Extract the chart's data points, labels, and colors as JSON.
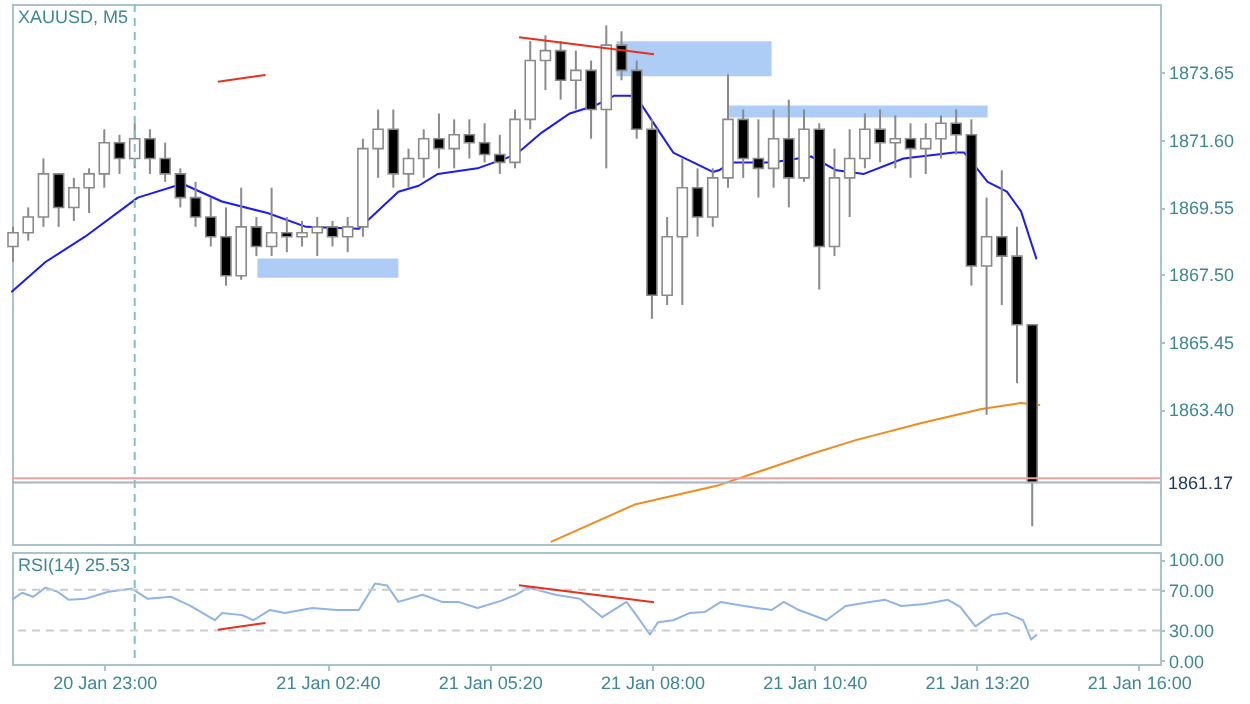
{
  "chart_data": [
    {
      "type": "candlestick",
      "title": "XAUUSD, M5",
      "x": [
        "--01-20T21:30",
        "--01-20T21:45",
        "--01-20T22:00",
        "--01-20T22:15",
        "--01-20T22:30",
        "--01-20T22:45",
        "--01-20T23:00",
        "--01-20T23:15",
        "--01-20T23:30",
        "--01-20T23:45",
        "--01-21T00:00",
        "--01-21T00:15",
        "--01-21T00:30",
        "--01-21T00:45",
        "--01-21T01:00",
        "--01-21T01:15",
        "--01-21T01:30",
        "--01-21T01:45",
        "--01-21T02:00",
        "--01-21T02:15",
        "--01-21T02:30",
        "--01-21T02:45",
        "--01-21T03:00",
        "--01-21T03:15",
        "--01-21T03:30",
        "--01-21T03:45",
        "--01-21T04:00",
        "--01-21T04:15",
        "--01-21T04:30",
        "--01-21T04:45",
        "--01-21T05:00",
        "--01-21T05:15",
        "--01-21T05:30",
        "--01-21T05:45",
        "--01-21T06:00",
        "--01-21T06:15",
        "--01-21T06:30",
        "--01-21T06:45",
        "--01-21T07:00",
        "--01-21T07:15",
        "--01-21T07:30",
        "--01-21T07:45",
        "--01-21T08:00",
        "--01-21T08:15",
        "--01-21T08:30",
        "--01-21T08:45",
        "--01-21T09:00",
        "--01-21T09:15",
        "--01-21T09:30",
        "--01-21T09:45",
        "--01-21T10:00",
        "--01-21T10:15",
        "--01-21T10:30",
        "--01-21T10:45",
        "--01-21T11:00",
        "--01-21T11:15",
        "--01-21T11:30",
        "--01-21T11:45",
        "--01-21T12:00",
        "--01-21T12:15",
        "--01-21T12:30",
        "--01-21T12:45",
        "--01-21T13:00",
        "--01-21T13:15",
        "--01-21T13:30",
        "--01-21T13:45",
        "--01-21T14:00",
        "--01-21T14:15"
      ],
      "ohlc": [
        [
          1868.35,
          1868.95,
          1867.88,
          1868.77
        ],
        [
          1868.77,
          1869.54,
          1868.53,
          1869.25
        ],
        [
          1869.25,
          1871.03,
          1868.95,
          1870.56
        ],
        [
          1870.56,
          1870.56,
          1868.95,
          1869.54
        ],
        [
          1869.54,
          1870.44,
          1869.13,
          1870.14
        ],
        [
          1870.14,
          1870.73,
          1869.37,
          1870.56
        ],
        [
          1870.56,
          1871.92,
          1870.14,
          1871.51
        ],
        [
          1871.51,
          1871.75,
          1870.56,
          1871.03
        ],
        [
          1871.03,
          1872.1,
          1870.73,
          1871.63
        ],
        [
          1871.63,
          1871.92,
          1870.56,
          1871.03
        ],
        [
          1871.03,
          1871.51,
          1870.32,
          1870.56
        ],
        [
          1870.56,
          1870.73,
          1869.54,
          1869.84
        ],
        [
          1869.84,
          1870.32,
          1868.95,
          1869.25
        ],
        [
          1869.25,
          1869.84,
          1868.35,
          1868.65
        ],
        [
          1868.65,
          1869.54,
          1867.16,
          1867.46
        ],
        [
          1867.46,
          1870.14,
          1867.34,
          1868.95
        ],
        [
          1868.95,
          1869.25,
          1868.06,
          1868.35
        ],
        [
          1868.35,
          1870.14,
          1868.06,
          1868.77
        ],
        [
          1868.77,
          1869.25,
          1868.18,
          1868.65
        ],
        [
          1868.65,
          1869.13,
          1868.35,
          1868.77
        ],
        [
          1868.77,
          1869.25,
          1868.06,
          1868.95
        ],
        [
          1868.95,
          1869.13,
          1868.35,
          1868.65
        ],
        [
          1868.65,
          1869.25,
          1868.18,
          1868.95
        ],
        [
          1868.95,
          1871.63,
          1868.65,
          1871.33
        ],
        [
          1871.33,
          1872.52,
          1870.44,
          1871.92
        ],
        [
          1871.92,
          1872.52,
          1870.14,
          1870.56
        ],
        [
          1870.56,
          1871.33,
          1870.14,
          1871.03
        ],
        [
          1871.03,
          1871.92,
          1870.44,
          1871.63
        ],
        [
          1871.63,
          1872.4,
          1870.73,
          1871.33
        ],
        [
          1871.33,
          1872.22,
          1870.73,
          1871.75
        ],
        [
          1871.75,
          1872.22,
          1871.03,
          1871.51
        ],
        [
          1871.51,
          1872.1,
          1870.91,
          1871.15
        ],
        [
          1871.15,
          1871.75,
          1870.56,
          1870.91
        ],
        [
          1870.91,
          1872.52,
          1870.73,
          1872.22
        ],
        [
          1872.22,
          1874.6,
          1871.92,
          1874.01
        ],
        [
          1874.01,
          1874.78,
          1873.11,
          1874.31
        ],
        [
          1874.31,
          1874.6,
          1872.82,
          1873.41
        ],
        [
          1873.41,
          1874.31,
          1872.52,
          1873.71
        ],
        [
          1873.71,
          1874.01,
          1871.63,
          1872.52
        ],
        [
          1872.52,
          1875.08,
          1870.73,
          1874.48
        ],
        [
          1874.48,
          1874.9,
          1873.41,
          1873.71
        ],
        [
          1873.71,
          1874.01,
          1871.63,
          1871.92
        ],
        [
          1871.92,
          1872.22,
          1866.15,
          1866.87
        ],
        [
          1866.87,
          1869.25,
          1866.57,
          1868.65
        ],
        [
          1868.65,
          1871.03,
          1866.57,
          1870.14
        ],
        [
          1870.14,
          1870.73,
          1868.65,
          1869.25
        ],
        [
          1869.25,
          1870.73,
          1868.95,
          1870.44
        ],
        [
          1870.44,
          1873.59,
          1870.14,
          1872.22
        ],
        [
          1872.22,
          1872.52,
          1870.44,
          1871.03
        ],
        [
          1871.03,
          1872.22,
          1869.84,
          1870.73
        ],
        [
          1870.73,
          1872.52,
          1870.14,
          1871.63
        ],
        [
          1871.63,
          1872.82,
          1869.54,
          1870.44
        ],
        [
          1870.44,
          1872.52,
          1870.32,
          1871.92
        ],
        [
          1871.92,
          1872.1,
          1867.04,
          1868.35
        ],
        [
          1868.35,
          1871.33,
          1868.06,
          1870.44
        ],
        [
          1870.44,
          1871.92,
          1869.25,
          1871.03
        ],
        [
          1871.03,
          1872.4,
          1870.73,
          1871.92
        ],
        [
          1871.92,
          1872.52,
          1870.91,
          1871.51
        ],
        [
          1871.51,
          1872.34,
          1870.73,
          1871.63
        ],
        [
          1871.63,
          1872.1,
          1870.44,
          1871.33
        ],
        [
          1871.33,
          1872.1,
          1870.56,
          1871.63
        ],
        [
          1871.63,
          1872.34,
          1871.03,
          1872.1
        ],
        [
          1872.1,
          1872.52,
          1871.15,
          1871.75
        ],
        [
          1871.75,
          1872.22,
          1867.16,
          1867.76
        ],
        [
          1867.76,
          1869.84,
          1863.23,
          1868.65
        ],
        [
          1868.65,
          1870.67,
          1866.57,
          1868.06
        ],
        [
          1868.06,
          1868.95,
          1864.19,
          1865.97
        ],
        [
          1865.97,
          1865.97,
          1859.84,
          1861.17
        ]
      ],
      "series": [
        {
          "type": "line",
          "color": "#1a1aff",
          "x": [
            "--01-20T21:29",
            "--01-20T22:02",
            "--01-20T22:41",
            "--01-20T23:33",
            "--01-21T00:17",
            "--01-21T00:56",
            "--01-21T01:41",
            "--01-21T02:19",
            "--01-21T03:11",
            "--01-21T03:50",
            "--01-21T04:10",
            "--01-21T04:29",
            "--01-21T05:08",
            "--01-21T05:46",
            "--01-21T06:11",
            "--01-21T06:39",
            "--01-21T07:04",
            "--01-21T07:23",
            "--01-21T07:39",
            "--01-21T07:49",
            "--01-21T08:08",
            "--01-21T08:21",
            "--01-21T09:00",
            "--01-21T09:06",
            "--01-21T09:19",
            "--01-21T09:58",
            "--01-21T10:37",
            "--01-21T11:02",
            "--01-21T11:29",
            "--01-21T12:08",
            "--01-21T12:58",
            "--01-21T13:08",
            "--01-21T13:31",
            "--01-21T13:50",
            "--01-21T14:04",
            "--01-21T14:19"
          ],
          "values": [
            1866.98,
            1867.88,
            1868.65,
            1869.84,
            1870.26,
            1869.72,
            1869.37,
            1868.95,
            1868.89,
            1870.02,
            1870.2,
            1870.56,
            1870.73,
            1871.15,
            1871.81,
            1872.4,
            1872.64,
            1872.94,
            1872.94,
            1872.7,
            1871.81,
            1871.21,
            1870.62,
            1870.67,
            1870.91,
            1870.91,
            1871.09,
            1870.67,
            1870.56,
            1871.03,
            1871.21,
            1871.21,
            1870.32,
            1870.02,
            1869.42,
            1867.99
          ]
        },
        {
          "type": "line",
          "color": "#f08c1e",
          "x": [
            "--01-21T06:21",
            "--01-21T07:43",
            "--01-21T09:06",
            "--01-21T10:37",
            "--01-21T11:21",
            "--01-21T12:27",
            "--01-21T13:25",
            "--01-21T14:04",
            "--01-21T14:22"
          ],
          "values": [
            1859.37,
            1860.5,
            1861.09,
            1862.04,
            1862.46,
            1862.99,
            1863.41,
            1863.59,
            1863.53
          ]
        }
      ],
      "xlim": [
        "--01-20T21:29",
        "--01-21T16:21"
      ],
      "ylim": [
        1859.3,
        1875.73
      ],
      "yticks": [
        {
          "value": 1863.4,
          "label": "1863.40"
        },
        1865.45,
        {
          "value": 1867.5,
          "label": "1867.50"
        },
        1869.55,
        {
          "value": 1871.6,
          "label": "1871.60"
        },
        1873.65
      ],
      "ref_lines": [
        {
          "axis": "x",
          "value": "--01-20T23:30",
          "color": "#7fbfcf",
          "line_style": "dashed"
        },
        {
          "axis": "y",
          "value": 1861.3,
          "color": "#f4a0a0"
        },
        {
          "axis": "y",
          "value": 1861.17,
          "label": "1861.17",
          "color": "#a8b4c0"
        }
      ],
      "tick_labels": "y"
    },
    {
      "type": "line",
      "title": "RSI(14) 25.53",
      "series": [
        {
          "color": "#8fb4ea",
          "x": [
            "--01-20T21:30",
            "--01-20T21:39",
            "--01-20T21:50",
            "--01-20T22:02",
            "--01-20T22:14",
            "--01-20T22:25",
            "--01-20T22:41",
            "--01-20T23:04",
            "--01-20T23:27",
            "--01-20T23:43",
            "--01-21T00:06",
            "--01-21T00:25",
            "--01-21T00:49",
            "--01-21T00:56",
            "--01-21T01:16",
            "--01-21T01:27",
            "--01-21T01:43",
            "--01-21T01:58",
            "--01-21T02:25",
            "--01-21T02:49",
            "--01-21T03:11",
            "--01-21T03:27",
            "--01-21T03:39",
            "--01-21T03:50",
            "--01-21T04:14",
            "--01-21T04:33",
            "--01-21T04:49",
            "--01-21T05:08",
            "--01-21T05:31",
            "--01-21T05:46",
            "--01-21T05:58",
            "--01-21T06:25",
            "--01-21T06:49",
            "--01-21T07:11",
            "--01-21T07:35",
            "--01-21T07:46",
            "--01-21T07:58",
            "--01-21T08:06",
            "--01-21T08:21",
            "--01-21T08:37",
            "--01-21T08:52",
            "--01-21T09:08",
            "--01-21T09:31",
            "--01-21T09:58",
            "--01-21T10:10",
            "--01-21T10:25",
            "--01-21T10:52",
            "--01-21T11:11",
            "--01-21T11:35",
            "--01-21T11:50",
            "--01-21T12:06",
            "--01-21T12:29",
            "--01-21T12:52",
            "--01-21T13:04",
            "--01-21T13:19",
            "--01-21T13:35",
            "--01-21T13:50",
            "--01-21T14:06",
            "--01-21T14:14",
            "--01-21T14:19"
          ],
          "values": [
            61,
            67,
            63,
            72,
            68,
            60,
            61,
            68,
            71,
            61,
            63,
            54,
            40,
            47,
            45,
            40,
            50,
            47,
            52,
            50,
            50,
            76,
            74,
            58,
            65,
            58,
            58,
            52,
            59,
            65,
            72,
            65,
            61,
            43,
            58,
            43,
            26,
            38,
            40,
            47,
            48,
            58,
            54,
            50,
            58,
            50,
            40,
            54,
            58,
            60,
            54,
            56,
            60,
            53,
            34,
            45,
            47,
            40,
            21,
            25.53
          ]
        }
      ],
      "xlim": [
        "--01-20T21:29",
        "--01-21T16:21"
      ],
      "xticks": [
        {
          "value": "--01-20T23:00",
          "label": "20 Jan 23:00"
        },
        {
          "value": "--01-21T02:40",
          "label": "21 Jan 02:40"
        },
        {
          "value": "--01-21T05:20",
          "label": "21 Jan 05:20"
        },
        {
          "value": "--01-21T08:00",
          "label": "21 Jan 08:00"
        },
        {
          "value": "--01-21T10:40",
          "label": "21 Jan 10:40"
        },
        {
          "value": "--01-21T13:20",
          "label": "21 Jan 13:20"
        },
        {
          "value": "--01-21T16:00",
          "label": "21 Jan 16:00"
        }
      ],
      "ylim": [
        -3,
        107
      ],
      "yticks": [
        {
          "value": 0,
          "label": "0.00"
        },
        {
          "value": 30,
          "label": "30.00"
        },
        {
          "value": 70,
          "label": "70.00"
        },
        {
          "value": 100,
          "label": "100.00"
        }
      ],
      "ref_lines": [
        {
          "axis": "x",
          "value": "--01-20T23:30",
          "color": "#7fbfcf",
          "line_style": "dashed"
        },
        {
          "axis": "y",
          "value": 70,
          "color": "#c8cdd2",
          "line_style": "dashed"
        },
        {
          "axis": "y",
          "value": 30,
          "color": "#c8cdd2",
          "line_style": "dashed"
        }
      ]
    }
  ]
}
